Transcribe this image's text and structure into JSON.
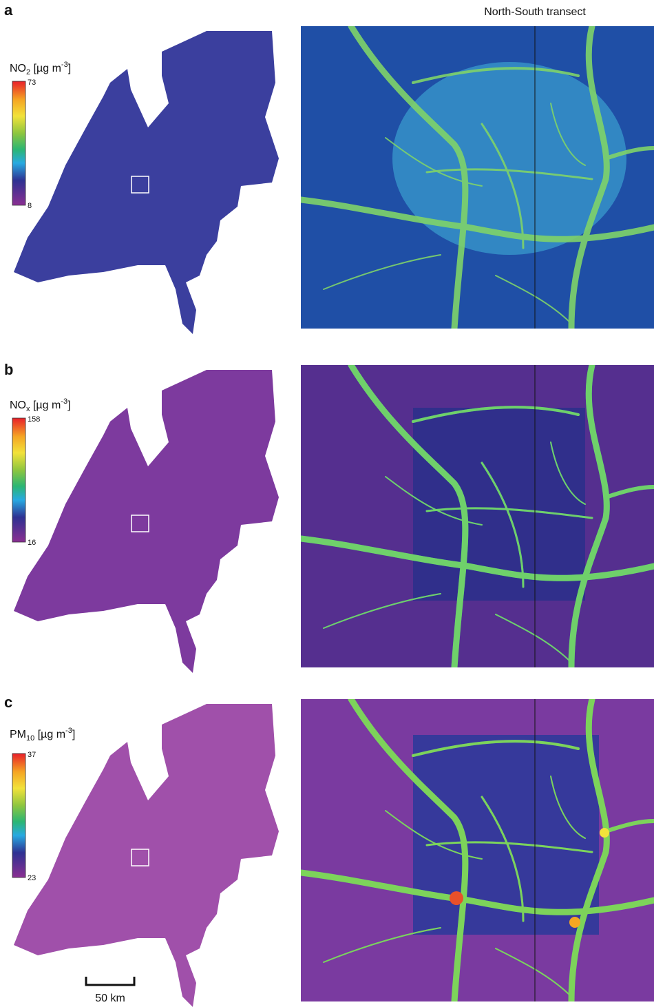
{
  "header": {
    "title": "North-South transect"
  },
  "panels": [
    {
      "letter": "a",
      "pollutant": "NO",
      "subscript": "2",
      "unit": " [µg m",
      "exponent": "-3",
      "unit_close": "]",
      "colorbar": {
        "max": 73,
        "min": 8
      }
    },
    {
      "letter": "b",
      "pollutant": "NO",
      "subscript": "x",
      "unit": " [µg m",
      "exponent": "-3",
      "unit_close": "]",
      "colorbar": {
        "max": 158,
        "min": 16
      }
    },
    {
      "letter": "c",
      "pollutant": "PM",
      "subscript": "10",
      "unit": " [µg m",
      "exponent": "-3",
      "unit_close": "]",
      "colorbar": {
        "max": 37,
        "min": 23
      }
    }
  ],
  "scale_bar": {
    "label": "50 km"
  }
}
